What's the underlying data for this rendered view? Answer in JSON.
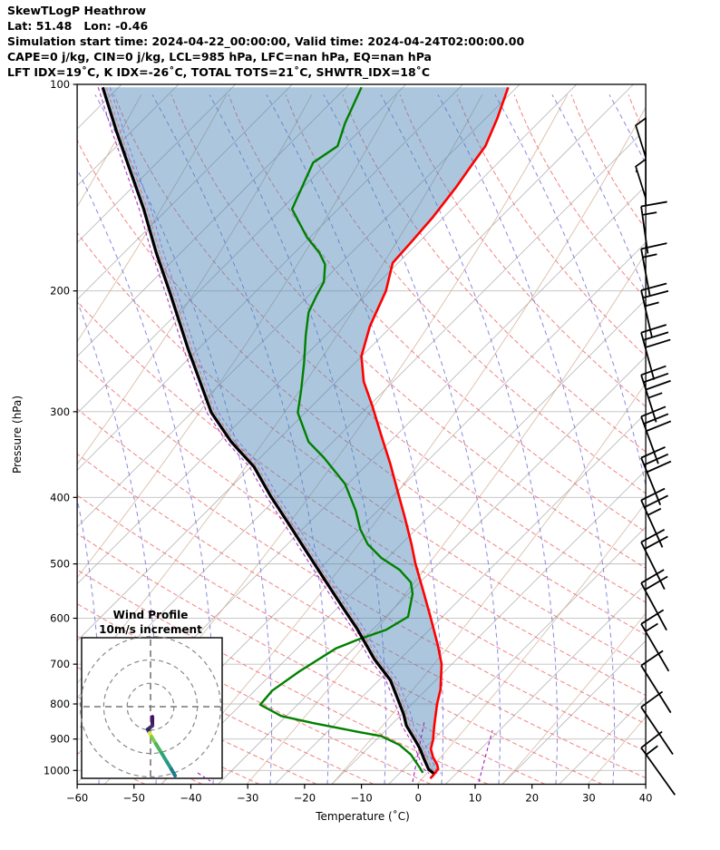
{
  "header": {
    "title": "SkewTLogP Heathrow",
    "location_line": "Lat: 51.48   Lon: -0.46",
    "time_line": "Simulation start time: 2024-04-22_00:00:00, Valid time: 2024-04-24T02:00:00.00",
    "stability_line": "CAPE=0 j/kg, CIN=0 j/kg, LCL=985 hPa, LFC=nan hPa, EQ=nan hPa",
    "indices_line": "LFT IDX=19˚C, K IDX=-26˚C, TOTAL TOTS=21˚C, SHWTR_IDX=18˚C"
  },
  "axes": {
    "x_label": "Temperature (˚C)",
    "y_label": "Pressure (hPa)",
    "x_ticks": [
      -60,
      -50,
      -40,
      -30,
      -20,
      -10,
      0,
      10,
      20,
      30,
      40
    ],
    "y_ticks": [
      100,
      200,
      300,
      400,
      500,
      600,
      700,
      800,
      900,
      1000
    ]
  },
  "inset": {
    "title_line1": "Wind Profile",
    "title_line2": "10m/s increment",
    "rings_ms": [
      10,
      20,
      30
    ]
  },
  "colors": {
    "temperature": "#ff0000",
    "dewpoint": "#008000",
    "parcel": "#000000",
    "fill": "rgba(70,130,180,0.45)",
    "isotherm": "#b5b5b5",
    "dry_adiabat": "#cfae96",
    "red_dashed": "#f26b6b",
    "blue_dashed": "#7b7bdf",
    "mixing_purple": "#a020c0",
    "isobar": "#c0c0c0"
  },
  "chart_data": {
    "type": "skewt_log_p",
    "station": "Heathrow",
    "x_axis_range_c": [
      -60,
      40
    ],
    "pressure_axis_range_hpa": [
      100,
      1050
    ],
    "note": "series points are [pressure_hPa, position_on_skewed_temperature_axis_C]",
    "series": [
      {
        "name": "temperature",
        "points": [
          [
            101,
            15.8
          ],
          [
            112,
            13.9
          ],
          [
            123,
            11.8
          ],
          [
            130,
            9.7
          ],
          [
            141,
            6.7
          ],
          [
            156,
            2.6
          ],
          [
            170,
            -1.3
          ],
          [
            182,
            -4.5
          ],
          [
            200,
            -5.7
          ],
          [
            225,
            -8.5
          ],
          [
            249,
            -10.0
          ],
          [
            271,
            -9.6
          ],
          [
            294,
            -8.1
          ],
          [
            325,
            -6.5
          ],
          [
            358,
            -4.9
          ],
          [
            390,
            -3.7
          ],
          [
            427,
            -2.4
          ],
          [
            468,
            -1.2
          ],
          [
            500,
            -0.5
          ],
          [
            545,
            0.8
          ],
          [
            600,
            2.2
          ],
          [
            655,
            3.4
          ],
          [
            700,
            4.1
          ],
          [
            762,
            3.9
          ],
          [
            800,
            3.3
          ],
          [
            860,
            2.8
          ],
          [
            902,
            2.6
          ],
          [
            930,
            2.2
          ],
          [
            957,
            2.6
          ],
          [
            980,
            3.3
          ],
          [
            995,
            3.5
          ],
          [
            1017,
            2.6
          ],
          [
            1027,
            2.1
          ]
        ]
      },
      {
        "name": "dewpoint",
        "points": [
          [
            101,
            -10.0
          ],
          [
            114,
            -12.9
          ],
          [
            123,
            -14.2
          ],
          [
            130,
            -18.5
          ],
          [
            152,
            -22.2
          ],
          [
            167,
            -19.6
          ],
          [
            176,
            -17.4
          ],
          [
            183,
            -16.4
          ],
          [
            194,
            -16.6
          ],
          [
            204,
            -18.0
          ],
          [
            215,
            -19.3
          ],
          [
            232,
            -19.8
          ],
          [
            255,
            -20.1
          ],
          [
            279,
            -20.6
          ],
          [
            301,
            -21.2
          ],
          [
            332,
            -19.3
          ],
          [
            350,
            -16.6
          ],
          [
            382,
            -12.9
          ],
          [
            418,
            -11.0
          ],
          [
            445,
            -10.2
          ],
          [
            468,
            -8.9
          ],
          [
            490,
            -6.5
          ],
          [
            510,
            -3.3
          ],
          [
            532,
            -1.3
          ],
          [
            553,
            -1.0
          ],
          [
            597,
            -1.8
          ],
          [
            624,
            -5.7
          ],
          [
            644,
            -10.5
          ],
          [
            664,
            -14.5
          ],
          [
            717,
            -20.9
          ],
          [
            765,
            -25.7
          ],
          [
            802,
            -27.8
          ],
          [
            833,
            -24.1
          ],
          [
            853,
            -18.5
          ],
          [
            879,
            -10.5
          ],
          [
            891,
            -6.5
          ],
          [
            918,
            -3.3
          ],
          [
            948,
            -1.3
          ],
          [
            992,
            0.3
          ],
          [
            1008,
            0.8
          ]
        ]
      },
      {
        "name": "parcel_boundary",
        "points": [
          [
            101,
            -55.5
          ],
          [
            117,
            -53.1
          ],
          [
            132,
            -50.9
          ],
          [
            152,
            -48.3
          ],
          [
            176,
            -46.1
          ],
          [
            201,
            -43.7
          ],
          [
            243,
            -40.5
          ],
          [
            271,
            -38.4
          ],
          [
            301,
            -36.4
          ],
          [
            332,
            -32.9
          ],
          [
            361,
            -28.9
          ],
          [
            398,
            -26.0
          ],
          [
            437,
            -22.8
          ],
          [
            478,
            -19.8
          ],
          [
            525,
            -16.6
          ],
          [
            585,
            -12.9
          ],
          [
            621,
            -10.8
          ],
          [
            689,
            -7.7
          ],
          [
            739,
            -4.9
          ],
          [
            827,
            -2.6
          ],
          [
            860,
            -2.1
          ],
          [
            902,
            -0.6
          ],
          [
            930,
            0.3
          ],
          [
            962,
            1.0
          ],
          [
            996,
            1.8
          ],
          [
            1010,
            2.7
          ]
        ]
      }
    ],
    "fill_between": {
      "left_series": "parcel_boundary",
      "right_series": "temperature"
    },
    "wind_barbs": [
      {
        "p": 122,
        "pennants": 1,
        "fulls": 1,
        "halfs": 0
      },
      {
        "p": 140,
        "pennants": 1,
        "fulls": 0,
        "halfs": 0
      },
      {
        "p": 163,
        "pennants": 0,
        "fulls": 1,
        "halfs": 1
      },
      {
        "p": 188,
        "pennants": 0,
        "fulls": 1,
        "halfs": 1
      },
      {
        "p": 216,
        "pennants": 0,
        "fulls": 2,
        "halfs": 1
      },
      {
        "p": 249,
        "pennants": 0,
        "fulls": 3,
        "halfs": 0
      },
      {
        "p": 287,
        "pennants": 0,
        "fulls": 3,
        "halfs": 1
      },
      {
        "p": 330,
        "pennants": 0,
        "fulls": 3,
        "halfs": 0
      },
      {
        "p": 379,
        "pennants": 0,
        "fulls": 3,
        "halfs": 0
      },
      {
        "p": 437,
        "pennants": 0,
        "fulls": 2,
        "halfs": 1
      },
      {
        "p": 503,
        "pennants": 0,
        "fulls": 2,
        "halfs": 0
      },
      {
        "p": 577,
        "pennants": 0,
        "fulls": 2,
        "halfs": 0
      },
      {
        "p": 662,
        "pennants": 0,
        "fulls": 1,
        "halfs": 1
      },
      {
        "p": 761,
        "pennants": 0,
        "fulls": 1,
        "halfs": 0
      },
      {
        "p": 875,
        "pennants": 0,
        "fulls": 1,
        "halfs": 0
      },
      {
        "p": 1003,
        "pennants": 0,
        "fulls": 1,
        "halfs": 1
      }
    ],
    "hodograph": {
      "ms_per_ring": 10,
      "trace_uv_ms": [
        [
          0.8,
          4.3
        ],
        [
          0.8,
          8.1
        ],
        [
          -1.2,
          9.7
        ],
        [
          -0.4,
          11.2
        ],
        [
          0.4,
          12.8
        ],
        [
          2.3,
          15.9
        ],
        [
          4.7,
          19.8
        ],
        [
          7.0,
          23.6
        ],
        [
          8.9,
          26.7
        ],
        [
          10.5,
          29.5
        ]
      ],
      "segment_colors": [
        "#471365",
        "#3b2f72",
        "#2d2a70",
        "#e5e33d",
        "#7ccf44",
        "#4db35f",
        "#2fa47a",
        "#27988a",
        "#1f7a8c"
      ]
    }
  }
}
